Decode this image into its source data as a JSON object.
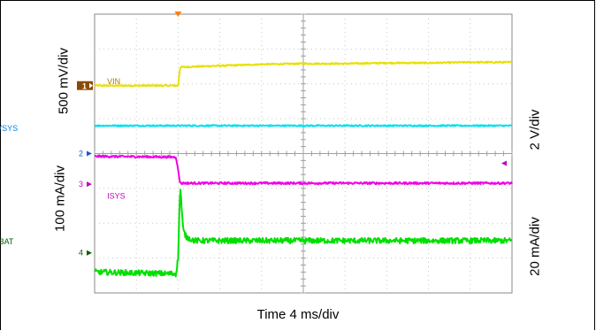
{
  "chart_data": {
    "type": "line",
    "xlabel": "Time 4 ms/div",
    "x_per_div_ms": 4,
    "divisions": {
      "x": 10,
      "y": 8
    },
    "left_labels": [
      "500 mV/div",
      "100 mA/div"
    ],
    "right_labels": [
      "2 V/div",
      "20 mA/div"
    ],
    "trigger_time_div": 2,
    "series": [
      {
        "name": "VIN",
        "marker": "1",
        "color": "#e8e000",
        "label_color": "#b07800",
        "label_pos": [
          2.9,
          2.0
        ],
        "t": [
          0,
          1.95,
          2.0,
          2.05,
          3.0,
          4.0,
          5.0,
          6.0,
          7.0,
          8.0,
          9.0,
          10.0
        ],
        "y": [
          1.95,
          1.95,
          1.95,
          2.48,
          2.52,
          2.56,
          2.58,
          2.58,
          2.6,
          2.6,
          2.62,
          2.62
        ],
        "noise": 0.02,
        "marker_level": 1.95
      },
      {
        "name": "VSYS",
        "color": "#00e0f0",
        "label_color": "#0080e0",
        "label_pos": [
          0.25,
          0.65
        ],
        "t": [
          0,
          10.0
        ],
        "y": [
          0.8,
          0.8
        ],
        "noise": 0.02,
        "label_side": "left"
      },
      {
        "name": "ISYS",
        "marker": "3",
        "color": "#f000e8",
        "label_color": "#c000c0",
        "label_pos": [
          2.9,
          -1.3
        ],
        "t": [
          0,
          1.95,
          2.05,
          2.1,
          10.0
        ],
        "y": [
          -0.08,
          -0.1,
          -0.85,
          -0.85,
          -0.85
        ],
        "noise": 0.03,
        "marker_level": -0.88
      },
      {
        "name": "IBAT",
        "marker": "4",
        "color": "#00e000",
        "label_color": "#006000",
        "label_pos": [
          0.25,
          -2.6
        ],
        "t": [
          0,
          1.95,
          2.0,
          2.05,
          2.12,
          2.2,
          2.4,
          3.0,
          10.0
        ],
        "y": [
          -3.4,
          -3.45,
          -3.0,
          -0.9,
          -2.2,
          -2.4,
          -2.5,
          -2.5,
          -2.5
        ],
        "noise": 0.08,
        "marker_level": -2.85
      }
    ],
    "ch2_marker": {
      "label": "2",
      "level": 0.0
    }
  }
}
